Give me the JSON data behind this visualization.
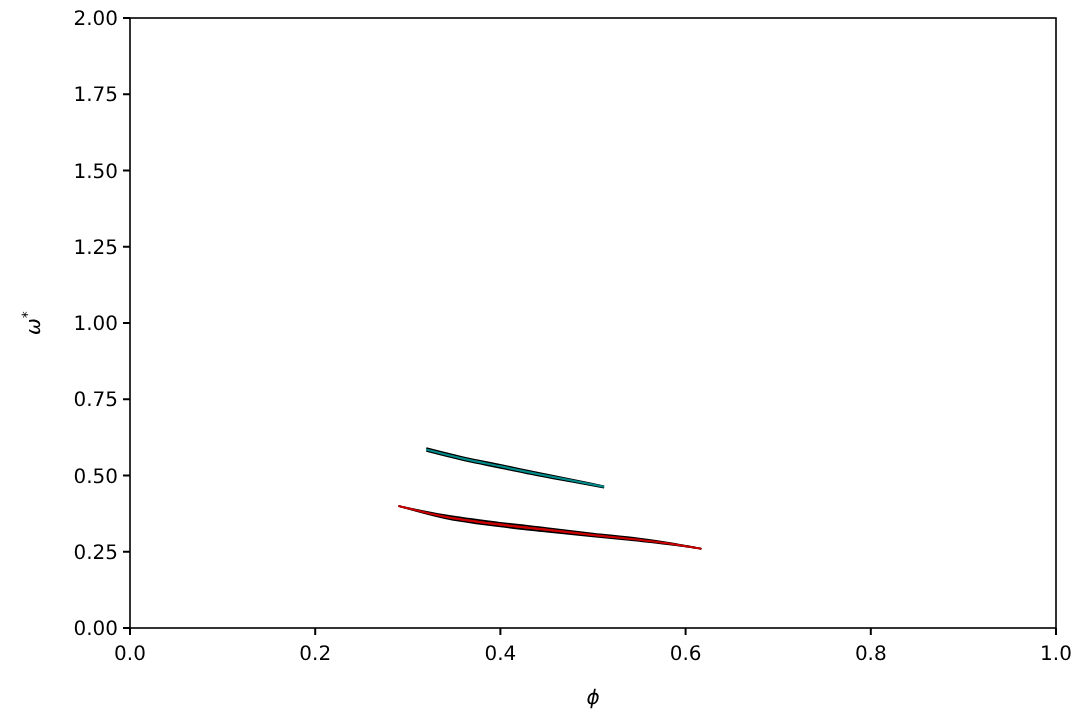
{
  "chart_data": {
    "type": "line",
    "xlabel": "ϕ",
    "ylabel": "ω$^{*}$",
    "xlim": [
      0,
      1
    ],
    "ylim": [
      0,
      2
    ],
    "xticks": [
      {
        "value": 0,
        "label": "0.0"
      },
      {
        "value": 0.2,
        "label": "0.2"
      },
      {
        "value": 0.4,
        "label": "0.4"
      },
      {
        "value": 0.6,
        "label": "0.6"
      },
      {
        "value": 0.8,
        "label": "0.8"
      },
      {
        "value": 1,
        "label": "1.0"
      }
    ],
    "yticks": [
      {
        "value": 0,
        "label": "0.00"
      },
      {
        "value": 0.25,
        "label": "0.25"
      },
      {
        "value": 0.5,
        "label": "0.50"
      },
      {
        "value": 0.75,
        "label": "0.75"
      },
      {
        "value": 1,
        "label": "1.00"
      },
      {
        "value": 1.25,
        "label": "1.25"
      },
      {
        "value": 1.5,
        "label": "1.50"
      },
      {
        "value": 1.75,
        "label": "1.75"
      },
      {
        "value": 2,
        "label": "2.00"
      }
    ],
    "grid": false,
    "marker": "none",
    "line_style": "solid",
    "series": [
      {
        "color": "#008b8b",
        "x": [
          0.32,
          0.36,
          0.4,
          0.44,
          0.48,
          0.512
        ],
        "values": [
          0.585,
          0.555,
          0.53,
          0.505,
          0.482,
          0.463
        ],
        "lower": [
          0.58,
          0.55,
          0.525,
          0.5,
          0.478,
          0.46
        ],
        "upper": [
          0.59,
          0.56,
          0.535,
          0.51,
          0.485,
          0.465
        ]
      },
      {
        "color": "#cc0000",
        "x": [
          0.29,
          0.34,
          0.4,
          0.45,
          0.5,
          0.55,
          0.58,
          0.617
        ],
        "values": [
          0.4,
          0.365,
          0.339,
          0.322,
          0.305,
          0.289,
          0.278,
          0.26
        ],
        "lower": [
          0.4,
          0.36,
          0.333,
          0.316,
          0.3,
          0.285,
          0.275,
          0.26
        ],
        "upper": [
          0.4,
          0.37,
          0.345,
          0.328,
          0.31,
          0.293,
          0.28,
          0.26
        ]
      }
    ]
  }
}
